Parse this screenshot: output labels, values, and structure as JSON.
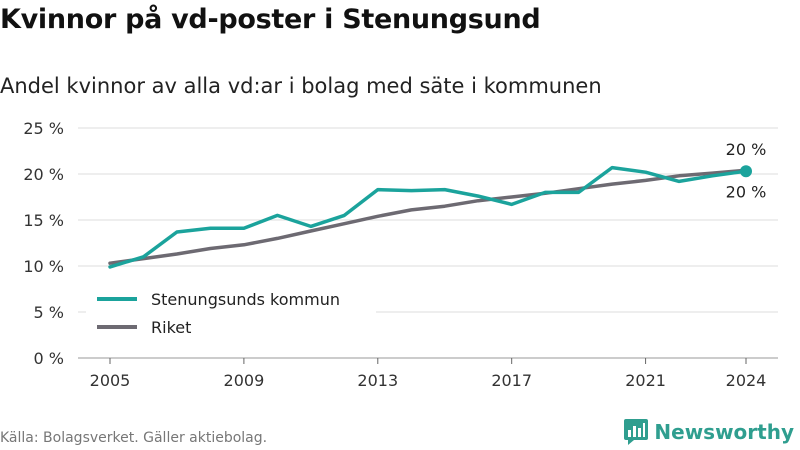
{
  "header": {
    "title": "Kvinnor på vd-poster i Stenungsund",
    "subtitle": "Andel kvinnor av alla vd:ar i bolag med säte i kommunen"
  },
  "footer": {
    "source": "Källa: Bolagsverket. Gäller aktiebolag.",
    "brand": "Newsworthy",
    "brand_icon": "bar-chart-logo-icon"
  },
  "colors": {
    "stenungsund": "#1ba39c",
    "riket": "#6d6a72",
    "grid": "#dddddd",
    "brand": "#2f9e8f"
  },
  "chart_data": {
    "type": "line",
    "x": [
      2005,
      2006,
      2007,
      2008,
      2009,
      2010,
      2011,
      2012,
      2013,
      2014,
      2015,
      2016,
      2017,
      2018,
      2019,
      2020,
      2021,
      2022,
      2023,
      2024
    ],
    "xticks": [
      2005,
      2009,
      2013,
      2017,
      2021,
      2024
    ],
    "ylim": [
      0,
      25
    ],
    "yticks": [
      0,
      5,
      10,
      15,
      20,
      25
    ],
    "ytick_labels": [
      "0 %",
      "5 %",
      "10 %",
      "15 %",
      "20 %",
      "25 %"
    ],
    "grid": true,
    "legend_position": "bottom-left",
    "series": [
      {
        "name": "Stenungsunds kommun",
        "color": "#1ba39c",
        "values": [
          9.9,
          11.0,
          13.7,
          14.1,
          14.1,
          15.5,
          14.3,
          15.5,
          18.3,
          18.2,
          18.3,
          17.6,
          16.7,
          18.0,
          18.0,
          20.7,
          20.2,
          19.2,
          19.8,
          20.3
        ],
        "end_label": "20 %"
      },
      {
        "name": "Riket",
        "color": "#6d6a72",
        "values": [
          10.3,
          10.8,
          11.3,
          11.9,
          12.3,
          13.0,
          13.8,
          14.6,
          15.4,
          16.1,
          16.5,
          17.1,
          17.5,
          17.9,
          18.4,
          18.9,
          19.3,
          19.8,
          20.1,
          20.4
        ],
        "end_label": "20 %"
      }
    ]
  }
}
